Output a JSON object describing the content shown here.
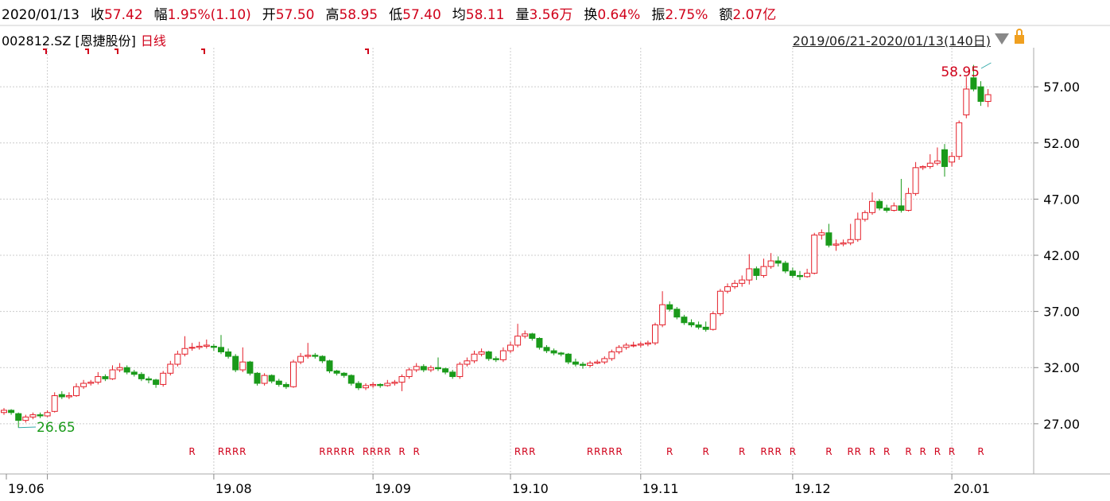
{
  "header": {
    "date": "2020/01/13",
    "items": [
      {
        "label": "收",
        "value": "57.42"
      },
      {
        "label": "幅",
        "value": "1.95%(1.10)"
      },
      {
        "label": "开",
        "value": "57.50"
      },
      {
        "label": "高",
        "value": "58.95"
      },
      {
        "label": "低",
        "value": "57.40"
      },
      {
        "label": "均",
        "value": "58.11"
      },
      {
        "label": "量",
        "value": "3.56万"
      },
      {
        "label": "换",
        "value": "0.64%"
      },
      {
        "label": "振",
        "value": "2.75%"
      },
      {
        "label": "额",
        "value": "2.07亿"
      }
    ]
  },
  "subheader": {
    "code": "002812.SZ [恩捷股份]",
    "period": "日线",
    "range": "2019/06/21-2020/01/13(140日)"
  },
  "chart_data": {
    "type": "candlestick",
    "up_color": "#e4202a",
    "down_color": "#1a9a1a",
    "grid": true,
    "ylim": [
      22.53,
      60.48
    ],
    "yticks": [
      {
        "value": 27,
        "label": "27.00"
      },
      {
        "value": 32,
        "label": "32.00"
      },
      {
        "value": 37,
        "label": "37.00"
      },
      {
        "value": 42,
        "label": "42.00"
      },
      {
        "value": 47,
        "label": "47.00"
      },
      {
        "value": 52,
        "label": "52.00"
      },
      {
        "value": 57,
        "label": "57.00"
      }
    ],
    "categories": [
      "19.06",
      null,
      null,
      null,
      null,
      null,
      null,
      null,
      null,
      null,
      null,
      null,
      null,
      null,
      null,
      null,
      null,
      null,
      null,
      null,
      null,
      null,
      null,
      null,
      null,
      null,
      null,
      null,
      null,
      "19.08",
      null,
      null,
      null,
      null,
      null,
      null,
      null,
      null,
      null,
      null,
      null,
      null,
      null,
      null,
      null,
      null,
      null,
      null,
      null,
      null,
      null,
      "19.09",
      null,
      null,
      null,
      null,
      null,
      null,
      null,
      null,
      null,
      null,
      null,
      null,
      null,
      null,
      null,
      null,
      null,
      null,
      "19.10",
      null,
      null,
      null,
      null,
      null,
      null,
      null,
      null,
      null,
      null,
      null,
      null,
      null,
      null,
      null,
      null,
      null,
      "19.11",
      null,
      null,
      null,
      null,
      null,
      null,
      null,
      null,
      null,
      null,
      null,
      null,
      null,
      null,
      null,
      null,
      null,
      null,
      null,
      null,
      "19.12",
      null,
      null,
      null,
      null,
      null,
      null,
      null,
      null,
      null,
      null,
      null,
      null,
      null,
      null,
      null,
      null,
      null,
      null,
      null,
      null,
      null,
      "20.01",
      null,
      null,
      null,
      null,
      null
    ],
    "candles": [
      [
        28.0,
        28.4,
        27.8,
        28.2
      ],
      [
        28.2,
        28.3,
        27.8,
        28.0
      ],
      [
        27.9,
        28.0,
        26.65,
        27.3
      ],
      [
        27.3,
        27.8,
        27.1,
        27.6
      ],
      [
        27.6,
        28.0,
        27.4,
        27.8
      ],
      [
        27.8,
        28.0,
        27.5,
        27.7
      ],
      [
        27.7,
        28.2,
        27.6,
        28.0
      ],
      [
        28.1,
        29.8,
        28.0,
        29.5
      ],
      [
        29.6,
        29.9,
        29.2,
        29.4
      ],
      [
        29.4,
        29.8,
        29.2,
        29.5
      ],
      [
        29.5,
        30.6,
        29.4,
        30.3
      ],
      [
        30.3,
        30.9,
        30.1,
        30.6
      ],
      [
        30.6,
        30.9,
        30.4,
        30.7
      ],
      [
        30.7,
        31.6,
        30.5,
        31.2
      ],
      [
        31.2,
        31.4,
        30.8,
        31.0
      ],
      [
        31.0,
        32.2,
        30.9,
        31.8
      ],
      [
        31.8,
        32.4,
        31.6,
        32.0
      ],
      [
        32.0,
        32.2,
        31.4,
        31.6
      ],
      [
        31.6,
        31.8,
        31.2,
        31.4
      ],
      [
        31.4,
        31.6,
        30.8,
        31.0
      ],
      [
        31.0,
        31.2,
        30.6,
        30.9
      ],
      [
        30.9,
        31.0,
        30.2,
        30.5
      ],
      [
        30.5,
        31.7,
        30.3,
        31.5
      ],
      [
        31.5,
        32.6,
        31.3,
        32.3
      ],
      [
        32.3,
        33.5,
        32.1,
        33.2
      ],
      [
        33.2,
        34.8,
        33.0,
        33.7
      ],
      [
        33.8,
        34.2,
        33.5,
        33.8
      ],
      [
        33.8,
        34.3,
        33.6,
        33.9
      ],
      [
        33.9,
        34.5,
        33.7,
        34.0
      ],
      [
        33.9,
        34.1,
        33.5,
        33.8
      ],
      [
        33.8,
        34.9,
        33.2,
        33.4
      ],
      [
        33.4,
        33.7,
        32.8,
        33.0
      ],
      [
        33.0,
        33.2,
        31.6,
        31.8
      ],
      [
        31.8,
        33.8,
        31.6,
        32.5
      ],
      [
        32.5,
        32.6,
        31.3,
        31.5
      ],
      [
        31.5,
        31.6,
        30.4,
        30.6
      ],
      [
        30.6,
        31.5,
        30.4,
        31.3
      ],
      [
        31.3,
        31.4,
        30.6,
        30.8
      ],
      [
        30.8,
        31.0,
        30.3,
        30.5
      ],
      [
        30.5,
        30.7,
        30.1,
        30.3
      ],
      [
        30.3,
        32.7,
        30.2,
        32.5
      ],
      [
        32.5,
        33.3,
        32.3,
        33.0
      ],
      [
        33.0,
        34.2,
        32.8,
        33.1
      ],
      [
        33.1,
        33.3,
        32.8,
        33.0
      ],
      [
        33.0,
        33.1,
        32.4,
        32.6
      ],
      [
        32.6,
        32.7,
        31.5,
        31.7
      ],
      [
        31.7,
        31.8,
        31.3,
        31.5
      ],
      [
        31.5,
        31.6,
        31.1,
        31.3
      ],
      [
        31.3,
        31.4,
        30.4,
        30.6
      ],
      [
        30.6,
        30.8,
        30.0,
        30.2
      ],
      [
        30.2,
        30.6,
        30.0,
        30.4
      ],
      [
        30.4,
        30.7,
        30.2,
        30.5
      ],
      [
        30.5,
        30.6,
        30.2,
        30.4
      ],
      [
        30.4,
        30.9,
        30.3,
        30.6
      ],
      [
        30.6,
        30.9,
        30.4,
        30.7
      ],
      [
        30.7,
        31.4,
        29.9,
        31.2
      ],
      [
        31.2,
        32.0,
        31.0,
        31.8
      ],
      [
        31.8,
        32.4,
        31.6,
        32.1
      ],
      [
        32.1,
        32.3,
        31.6,
        31.8
      ],
      [
        31.8,
        32.2,
        31.6,
        32.0
      ],
      [
        32.0,
        32.9,
        31.7,
        31.9
      ],
      [
        31.9,
        32.0,
        31.4,
        31.6
      ],
      [
        31.6,
        31.8,
        31.0,
        31.2
      ],
      [
        31.2,
        32.5,
        31.0,
        32.3
      ],
      [
        32.3,
        32.9,
        32.1,
        32.6
      ],
      [
        32.6,
        33.5,
        32.4,
        33.2
      ],
      [
        33.2,
        33.7,
        33.0,
        33.4
      ],
      [
        33.4,
        33.5,
        32.6,
        32.8
      ],
      [
        32.8,
        33.0,
        32.5,
        32.7
      ],
      [
        32.7,
        33.8,
        32.5,
        33.5
      ],
      [
        33.5,
        34.3,
        33.3,
        34.0
      ],
      [
        34.0,
        35.9,
        33.8,
        34.8
      ],
      [
        34.8,
        35.3,
        34.6,
        35.0
      ],
      [
        35.0,
        35.1,
        34.4,
        34.6
      ],
      [
        34.6,
        34.7,
        33.6,
        33.8
      ],
      [
        33.8,
        34.0,
        33.3,
        33.5
      ],
      [
        33.5,
        33.7,
        33.1,
        33.3
      ],
      [
        33.3,
        33.4,
        33.0,
        33.2
      ],
      [
        33.2,
        33.3,
        32.3,
        32.5
      ],
      [
        32.5,
        32.8,
        32.1,
        32.3
      ],
      [
        32.3,
        32.5,
        31.9,
        32.2
      ],
      [
        32.2,
        32.6,
        32.0,
        32.4
      ],
      [
        32.4,
        32.7,
        32.3,
        32.5
      ],
      [
        32.5,
        33.0,
        32.3,
        32.8
      ],
      [
        32.8,
        33.6,
        32.6,
        33.4
      ],
      [
        33.4,
        34.0,
        33.2,
        33.8
      ],
      [
        33.8,
        34.2,
        33.6,
        34.0
      ],
      [
        34.0,
        34.3,
        33.8,
        34.0
      ],
      [
        34.0,
        34.3,
        33.8,
        34.1
      ],
      [
        34.1,
        34.4,
        33.9,
        34.2
      ],
      [
        34.2,
        36.0,
        34.0,
        35.8
      ],
      [
        35.8,
        38.8,
        35.6,
        37.6
      ],
      [
        37.6,
        37.9,
        37.0,
        37.2
      ],
      [
        37.2,
        37.4,
        36.3,
        36.5
      ],
      [
        36.5,
        36.7,
        35.8,
        36.0
      ],
      [
        36.0,
        36.3,
        35.6,
        35.8
      ],
      [
        35.8,
        36.1,
        35.4,
        35.6
      ],
      [
        35.6,
        36.1,
        35.2,
        35.4
      ],
      [
        35.4,
        37.0,
        35.3,
        36.8
      ],
      [
        36.8,
        39.0,
        36.6,
        38.8
      ],
      [
        38.8,
        39.5,
        38.6,
        39.2
      ],
      [
        39.2,
        39.8,
        39.0,
        39.5
      ],
      [
        39.5,
        40.2,
        39.2,
        39.8
      ],
      [
        39.8,
        42.1,
        39.4,
        40.8
      ],
      [
        40.8,
        41.0,
        39.8,
        40.2
      ],
      [
        40.2,
        41.7,
        40.0,
        41.0
      ],
      [
        41.0,
        42.2,
        40.8,
        41.5
      ],
      [
        41.5,
        41.9,
        41.0,
        41.3
      ],
      [
        41.3,
        41.5,
        40.4,
        40.6
      ],
      [
        40.6,
        40.9,
        40.0,
        40.2
      ],
      [
        40.2,
        40.6,
        39.8,
        40.1
      ],
      [
        40.1,
        40.8,
        40.0,
        40.4
      ],
      [
        40.4,
        44.0,
        40.3,
        43.8
      ],
      [
        43.8,
        44.3,
        43.4,
        44.0
      ],
      [
        44.0,
        44.8,
        42.7,
        42.9
      ],
      [
        42.9,
        43.4,
        42.4,
        43.0
      ],
      [
        43.0,
        43.4,
        42.8,
        43.1
      ],
      [
        43.1,
        44.8,
        42.9,
        43.4
      ],
      [
        43.4,
        45.8,
        43.2,
        45.2
      ],
      [
        45.2,
        46.0,
        45.0,
        45.8
      ],
      [
        45.8,
        47.6,
        45.6,
        46.8
      ],
      [
        46.8,
        47.0,
        46.0,
        46.2
      ],
      [
        46.2,
        46.5,
        45.8,
        46.0
      ],
      [
        46.0,
        46.7,
        45.9,
        46.4
      ],
      [
        46.4,
        48.8,
        45.8,
        46.0
      ],
      [
        46.0,
        48.0,
        45.9,
        47.5
      ],
      [
        47.5,
        50.3,
        47.3,
        49.8
      ],
      [
        49.8,
        50.0,
        49.6,
        49.9
      ],
      [
        49.9,
        51.0,
        49.7,
        50.2
      ],
      [
        50.2,
        51.6,
        50.0,
        50.4
      ],
      [
        51.4,
        51.9,
        49.0,
        49.9
      ],
      [
        50.3,
        51.2,
        49.9,
        50.8
      ],
      [
        50.8,
        54.0,
        50.5,
        53.8
      ],
      [
        54.5,
        57.9,
        54.2,
        56.8
      ],
      [
        57.8,
        58.95,
        56.6,
        56.8
      ],
      [
        57.0,
        57.5,
        55.3,
        55.7
      ],
      [
        55.7,
        56.8,
        55.2,
        56.3
      ]
    ],
    "high_annotation": 58.95,
    "high_index": 134,
    "low_annotation": 26.65,
    "low_index": 2,
    "r_label": "R",
    "r_marks": [
      26,
      30,
      31,
      32,
      33,
      44,
      45,
      46,
      47,
      48,
      50,
      51,
      52,
      53,
      55,
      57,
      71,
      72,
      73,
      81,
      82,
      83,
      84,
      85,
      92,
      97,
      102,
      105,
      106,
      107,
      109,
      114,
      117,
      118,
      120,
      122,
      125,
      127,
      129,
      131,
      135
    ]
  }
}
